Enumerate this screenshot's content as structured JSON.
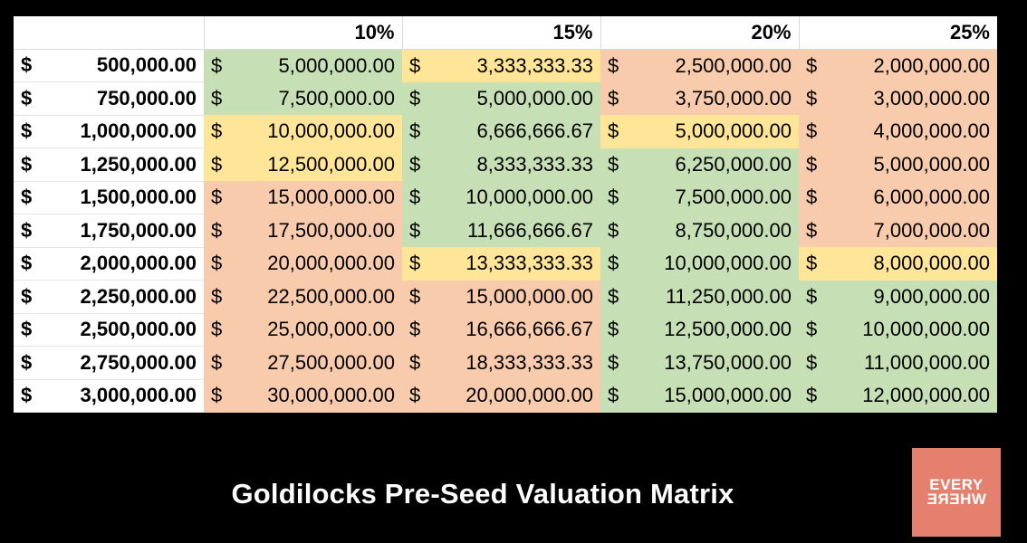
{
  "title": "Goldilocks Pre-Seed Valuation Matrix",
  "logo": {
    "line1": "EVERY",
    "line2": "WHERE",
    "color": "#e5806f"
  },
  "colors": {
    "green": "#c6dfb4",
    "yellow": "#ffe597",
    "orange": "#f8cbad"
  },
  "chart_data": {
    "type": "table",
    "title": "Goldilocks Pre-Seed Valuation Matrix",
    "columns": [
      "10%",
      "15%",
      "20%",
      "25%"
    ],
    "currency_symbol": "$",
    "rows": [
      {
        "label": "500,000.00",
        "cells": [
          {
            "value": "5,000,000.00",
            "color": "green"
          },
          {
            "value": "3,333,333.33",
            "color": "yellow"
          },
          {
            "value": "2,500,000.00",
            "color": "orange"
          },
          {
            "value": "2,000,000.00",
            "color": "orange"
          }
        ]
      },
      {
        "label": "750,000.00",
        "cells": [
          {
            "value": "7,500,000.00",
            "color": "green"
          },
          {
            "value": "5,000,000.00",
            "color": "green"
          },
          {
            "value": "3,750,000.00",
            "color": "orange"
          },
          {
            "value": "3,000,000.00",
            "color": "orange"
          }
        ]
      },
      {
        "label": "1,000,000.00",
        "cells": [
          {
            "value": "10,000,000.00",
            "color": "yellow"
          },
          {
            "value": "6,666,666.67",
            "color": "green"
          },
          {
            "value": "5,000,000.00",
            "color": "yellow"
          },
          {
            "value": "4,000,000.00",
            "color": "orange"
          }
        ]
      },
      {
        "label": "1,250,000.00",
        "cells": [
          {
            "value": "12,500,000.00",
            "color": "yellow"
          },
          {
            "value": "8,333,333.33",
            "color": "green"
          },
          {
            "value": "6,250,000.00",
            "color": "green"
          },
          {
            "value": "5,000,000.00",
            "color": "orange"
          }
        ]
      },
      {
        "label": "1,500,000.00",
        "cells": [
          {
            "value": "15,000,000.00",
            "color": "orange"
          },
          {
            "value": "10,000,000.00",
            "color": "green"
          },
          {
            "value": "7,500,000.00",
            "color": "green"
          },
          {
            "value": "6,000,000.00",
            "color": "orange"
          }
        ]
      },
      {
        "label": "1,750,000.00",
        "cells": [
          {
            "value": "17,500,000.00",
            "color": "orange"
          },
          {
            "value": "11,666,666.67",
            "color": "green"
          },
          {
            "value": "8,750,000.00",
            "color": "green"
          },
          {
            "value": "7,000,000.00",
            "color": "orange"
          }
        ]
      },
      {
        "label": "2,000,000.00",
        "cells": [
          {
            "value": "20,000,000.00",
            "color": "orange"
          },
          {
            "value": "13,333,333.33",
            "color": "yellow"
          },
          {
            "value": "10,000,000.00",
            "color": "green"
          },
          {
            "value": "8,000,000.00",
            "color": "yellow"
          }
        ]
      },
      {
        "label": "2,250,000.00",
        "cells": [
          {
            "value": "22,500,000.00",
            "color": "orange"
          },
          {
            "value": "15,000,000.00",
            "color": "orange"
          },
          {
            "value": "11,250,000.00",
            "color": "green"
          },
          {
            "value": "9,000,000.00",
            "color": "green"
          }
        ]
      },
      {
        "label": "2,500,000.00",
        "cells": [
          {
            "value": "25,000,000.00",
            "color": "orange"
          },
          {
            "value": "16,666,666.67",
            "color": "orange"
          },
          {
            "value": "12,500,000.00",
            "color": "green"
          },
          {
            "value": "10,000,000.00",
            "color": "green"
          }
        ]
      },
      {
        "label": "2,750,000.00",
        "cells": [
          {
            "value": "27,500,000.00",
            "color": "orange"
          },
          {
            "value": "18,333,333.33",
            "color": "orange"
          },
          {
            "value": "13,750,000.00",
            "color": "green"
          },
          {
            "value": "11,000,000.00",
            "color": "green"
          }
        ]
      },
      {
        "label": "3,000,000.00",
        "cells": [
          {
            "value": "30,000,000.00",
            "color": "orange"
          },
          {
            "value": "20,000,000.00",
            "color": "orange"
          },
          {
            "value": "15,000,000.00",
            "color": "green"
          },
          {
            "value": "12,000,000.00",
            "color": "green"
          }
        ]
      }
    ]
  }
}
